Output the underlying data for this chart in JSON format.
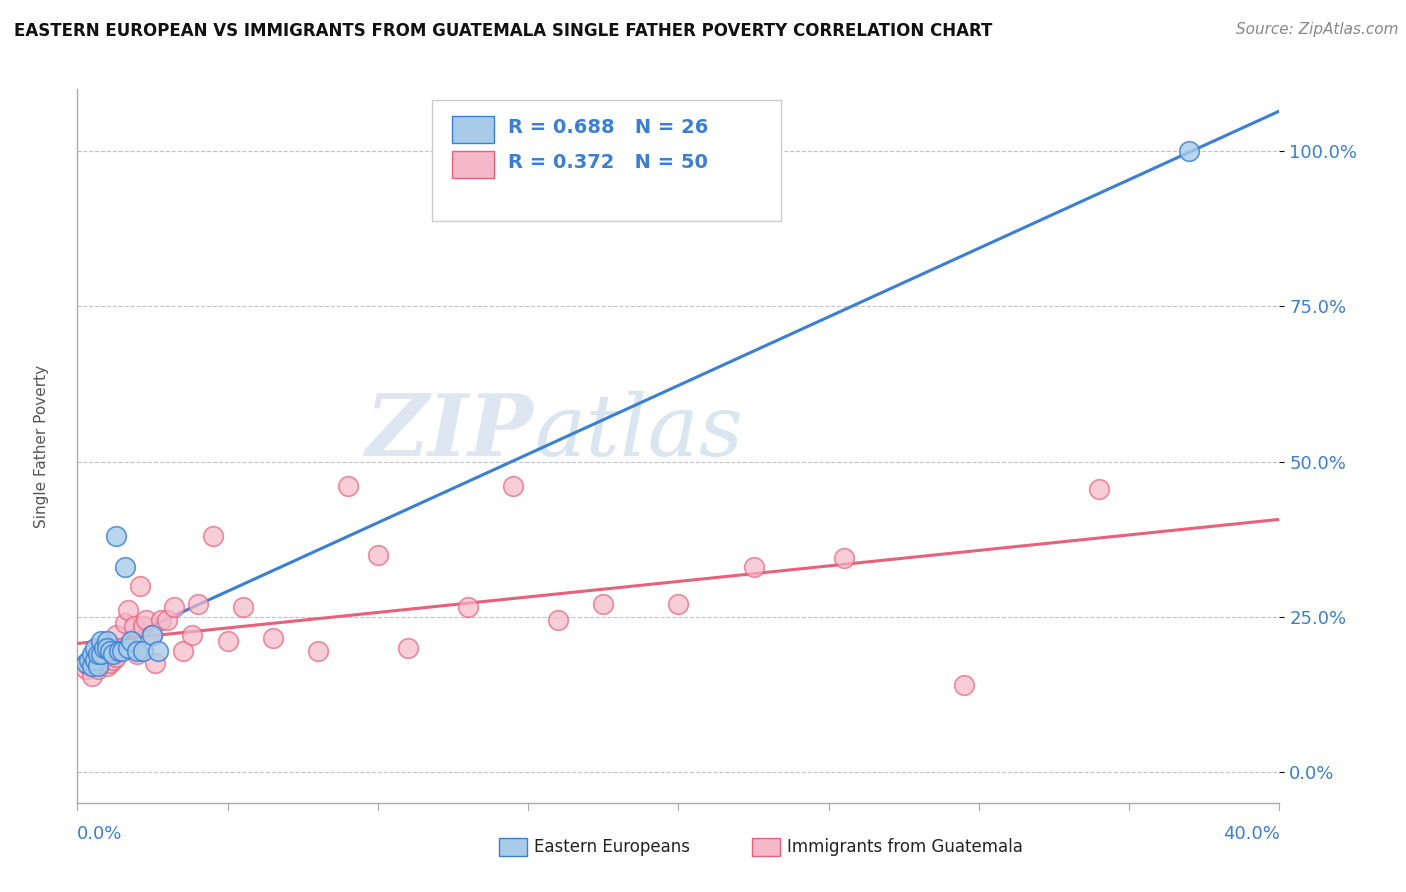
{
  "title": "EASTERN EUROPEAN VS IMMIGRANTS FROM GUATEMALA SINGLE FATHER POVERTY CORRELATION CHART",
  "source": "Source: ZipAtlas.com",
  "ylabel": "Single Father Poverty",
  "yticks_labels": [
    "0.0%",
    "25.0%",
    "50.0%",
    "75.0%",
    "100.0%"
  ],
  "ytick_values": [
    0.0,
    0.25,
    0.5,
    0.75,
    1.0
  ],
  "xlim": [
    0.0,
    0.4
  ],
  "ylim": [
    -0.05,
    1.1
  ],
  "blue_R": 0.688,
  "blue_N": 26,
  "pink_R": 0.372,
  "pink_N": 50,
  "blue_marker_color": "#a8cce8",
  "pink_marker_color": "#f5b8c8",
  "blue_line_color": "#3a7fd4",
  "pink_line_color": "#e8607a",
  "blue_text_color": "#3a7fd4",
  "legend_label_blue": "Eastern Europeans",
  "legend_label_pink": "Immigrants from Guatemala",
  "watermark_zip": "ZIP",
  "watermark_atlas": "atlas",
  "blue_scatter_x": [
    0.003,
    0.004,
    0.005,
    0.005,
    0.006,
    0.006,
    0.007,
    0.007,
    0.008,
    0.008,
    0.009,
    0.01,
    0.01,
    0.011,
    0.012,
    0.013,
    0.014,
    0.015,
    0.016,
    0.017,
    0.018,
    0.02,
    0.022,
    0.025,
    0.027,
    0.37
  ],
  "blue_scatter_y": [
    0.175,
    0.18,
    0.17,
    0.19,
    0.18,
    0.2,
    0.17,
    0.19,
    0.19,
    0.21,
    0.2,
    0.21,
    0.2,
    0.195,
    0.19,
    0.38,
    0.195,
    0.195,
    0.33,
    0.2,
    0.21,
    0.195,
    0.195,
    0.22,
    0.195,
    1.0
  ],
  "pink_scatter_x": [
    0.003,
    0.004,
    0.005,
    0.005,
    0.006,
    0.007,
    0.008,
    0.008,
    0.009,
    0.01,
    0.01,
    0.011,
    0.012,
    0.013,
    0.013,
    0.014,
    0.015,
    0.016,
    0.017,
    0.018,
    0.019,
    0.02,
    0.021,
    0.022,
    0.023,
    0.025,
    0.026,
    0.028,
    0.03,
    0.032,
    0.035,
    0.038,
    0.04,
    0.045,
    0.05,
    0.055,
    0.065,
    0.08,
    0.09,
    0.1,
    0.11,
    0.13,
    0.145,
    0.16,
    0.175,
    0.2,
    0.225,
    0.255,
    0.295,
    0.34
  ],
  "pink_scatter_y": [
    0.165,
    0.17,
    0.155,
    0.18,
    0.18,
    0.165,
    0.175,
    0.19,
    0.185,
    0.17,
    0.195,
    0.175,
    0.18,
    0.185,
    0.22,
    0.195,
    0.2,
    0.24,
    0.26,
    0.2,
    0.235,
    0.19,
    0.3,
    0.235,
    0.245,
    0.22,
    0.175,
    0.245,
    0.245,
    0.265,
    0.195,
    0.22,
    0.27,
    0.38,
    0.21,
    0.265,
    0.215,
    0.195,
    0.46,
    0.35,
    0.2,
    0.265,
    0.46,
    0.245,
    0.27,
    0.27,
    0.33,
    0.345,
    0.14,
    0.455
  ]
}
